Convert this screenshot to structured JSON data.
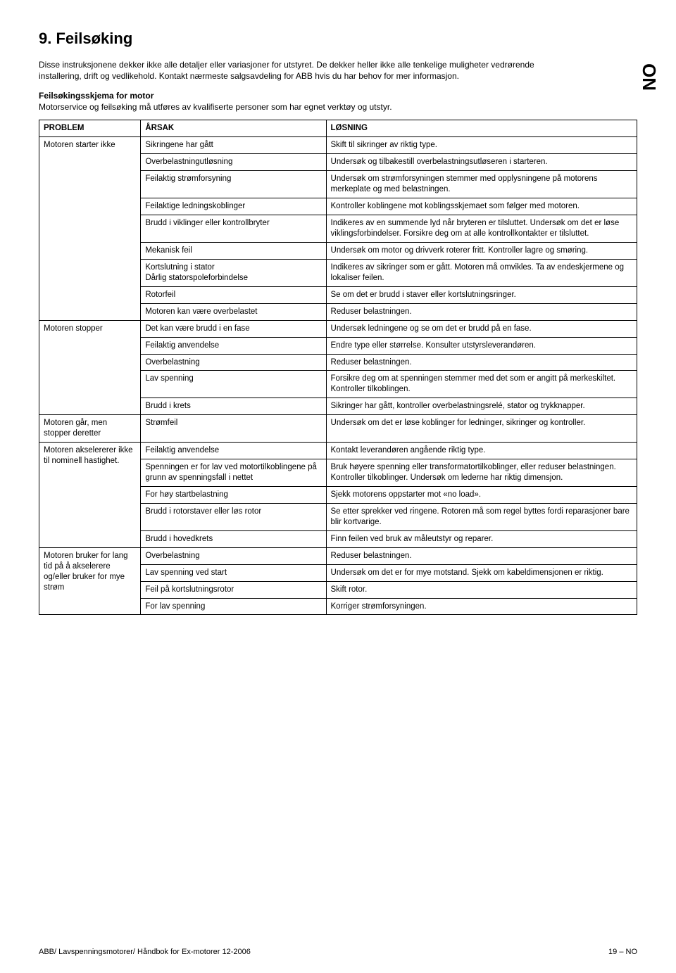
{
  "lang_code": "NO",
  "heading": "9.   Feilsøking",
  "intro_p1": "Disse instruksjonene dekker ikke alle detaljer eller variasjoner for utstyret. De dekker heller ikke alle tenkelige muligheter vedrørende installering, drift og vedlikehold. Kontakt nærmeste salgsavdeling for ABB hvis du har behov for mer informasjon.",
  "schema_title": "Feilsøkingsskjema for motor",
  "schema_desc": "Motorservice og feilsøking må utføres av kvalifiserte personer som har egnet verktøy og utstyr.",
  "columns": [
    "PROBLEM",
    "ÅRSAK",
    "LØSNING"
  ],
  "groups": [
    {
      "problem": "Motoren starter ikke",
      "rows": [
        [
          "Sikringene har gått",
          "Skift til sikringer av riktig type."
        ],
        [
          "Overbelastningutløsning",
          "Undersøk og tilbakestill overbelastningsutløseren i starteren."
        ],
        [
          "Feilaktig strømforsyning",
          "Undersøk om strømforsyningen stemmer med opplysningene på motorens merkeplate og med belastningen."
        ],
        [
          "Feilaktige ledningskoblinger",
          "Kontroller koblingene mot koblingsskjemaet som følger med motoren."
        ],
        [
          "Brudd i viklinger eller kontrollbryter",
          "Indikeres av en summende lyd når bryteren er tilsluttet. Undersøk om det er løse viklingsforbindelser. Forsikre deg om at alle kontrollkontakter er tilsluttet."
        ],
        [
          "Mekanisk feil",
          "Undersøk om motor og drivverk roterer fritt. Kontroller lagre og smøring."
        ],
        [
          "Kortslutning i stator\nDårlig statorspoleforbindelse",
          "Indikeres av sikringer som er gått. Motoren må omvikles. Ta av endeskjermene og lokaliser feilen."
        ],
        [
          "Rotorfeil",
          "Se om det er brudd i staver eller kortslutningsringer."
        ],
        [
          "Motoren kan være overbelastet",
          "Reduser belastningen."
        ]
      ]
    },
    {
      "problem": "Motoren stopper",
      "rows": [
        [
          "Det kan være brudd i en fase",
          "Undersøk ledningene og se om det er brudd på en fase."
        ],
        [
          "Feilaktig anvendelse",
          "Endre type eller størrelse. Konsulter utstyrsleverandøren."
        ],
        [
          "Overbelastning",
          "Reduser belastningen."
        ],
        [
          "Lav spenning",
          "Forsikre deg om at spenningen stemmer med det som er angitt på merkeskiltet. Kontroller tilkoblingen."
        ],
        [
          "Brudd i krets",
          "Sikringer har gått, kontroller overbelastningsrelé, stator og trykknapper."
        ]
      ]
    },
    {
      "problem": "Motoren går, men stopper deretter",
      "rows": [
        [
          "Strømfeil",
          "Undersøk om det er løse koblinger for ledninger, sikringer og kontroller."
        ]
      ]
    },
    {
      "problem": "Motoren akselererer ikke til nominell hastighet.",
      "rows": [
        [
          "Feilaktig anvendelse",
          "Kontakt leverandøren angående riktig type."
        ],
        [
          "Spenningen er for lav ved motortilkoblingene på grunn av spenningsfall i nettet",
          "Bruk høyere spenning eller transformatortilkoblinger, eller reduser belastningen. Kontroller tilkoblinger. Undersøk om lederne har riktig dimensjon."
        ],
        [
          "For høy startbelastning",
          "Sjekk motorens oppstarter mot «no load»."
        ],
        [
          "Brudd i rotorstaver eller løs rotor",
          "Se etter sprekker ved ringene. Rotoren må som regel byttes fordi reparasjoner bare blir kortvarige."
        ],
        [
          "Brudd i hovedkrets",
          "Finn feilen ved bruk av måleutstyr og reparer."
        ]
      ]
    },
    {
      "problem": "Motoren bruker for lang tid på å akselerere og/eller bruker for mye strøm",
      "rows": [
        [
          "Overbelastning",
          "Reduser belastningen."
        ],
        [
          "Lav spenning ved start",
          "Undersøk om det er for mye motstand. Sjekk om kabeldimensjonen er riktig."
        ],
        [
          "Feil på kortslutningsrotor",
          "Skift rotor."
        ],
        [
          "For lav spenning",
          "Korriger strømforsyningen."
        ]
      ]
    }
  ],
  "footer_left": "ABB/ Lavspenningsmotorer/ Håndbok for Ex-motorer 12-2006",
  "footer_right": "19 – NO"
}
